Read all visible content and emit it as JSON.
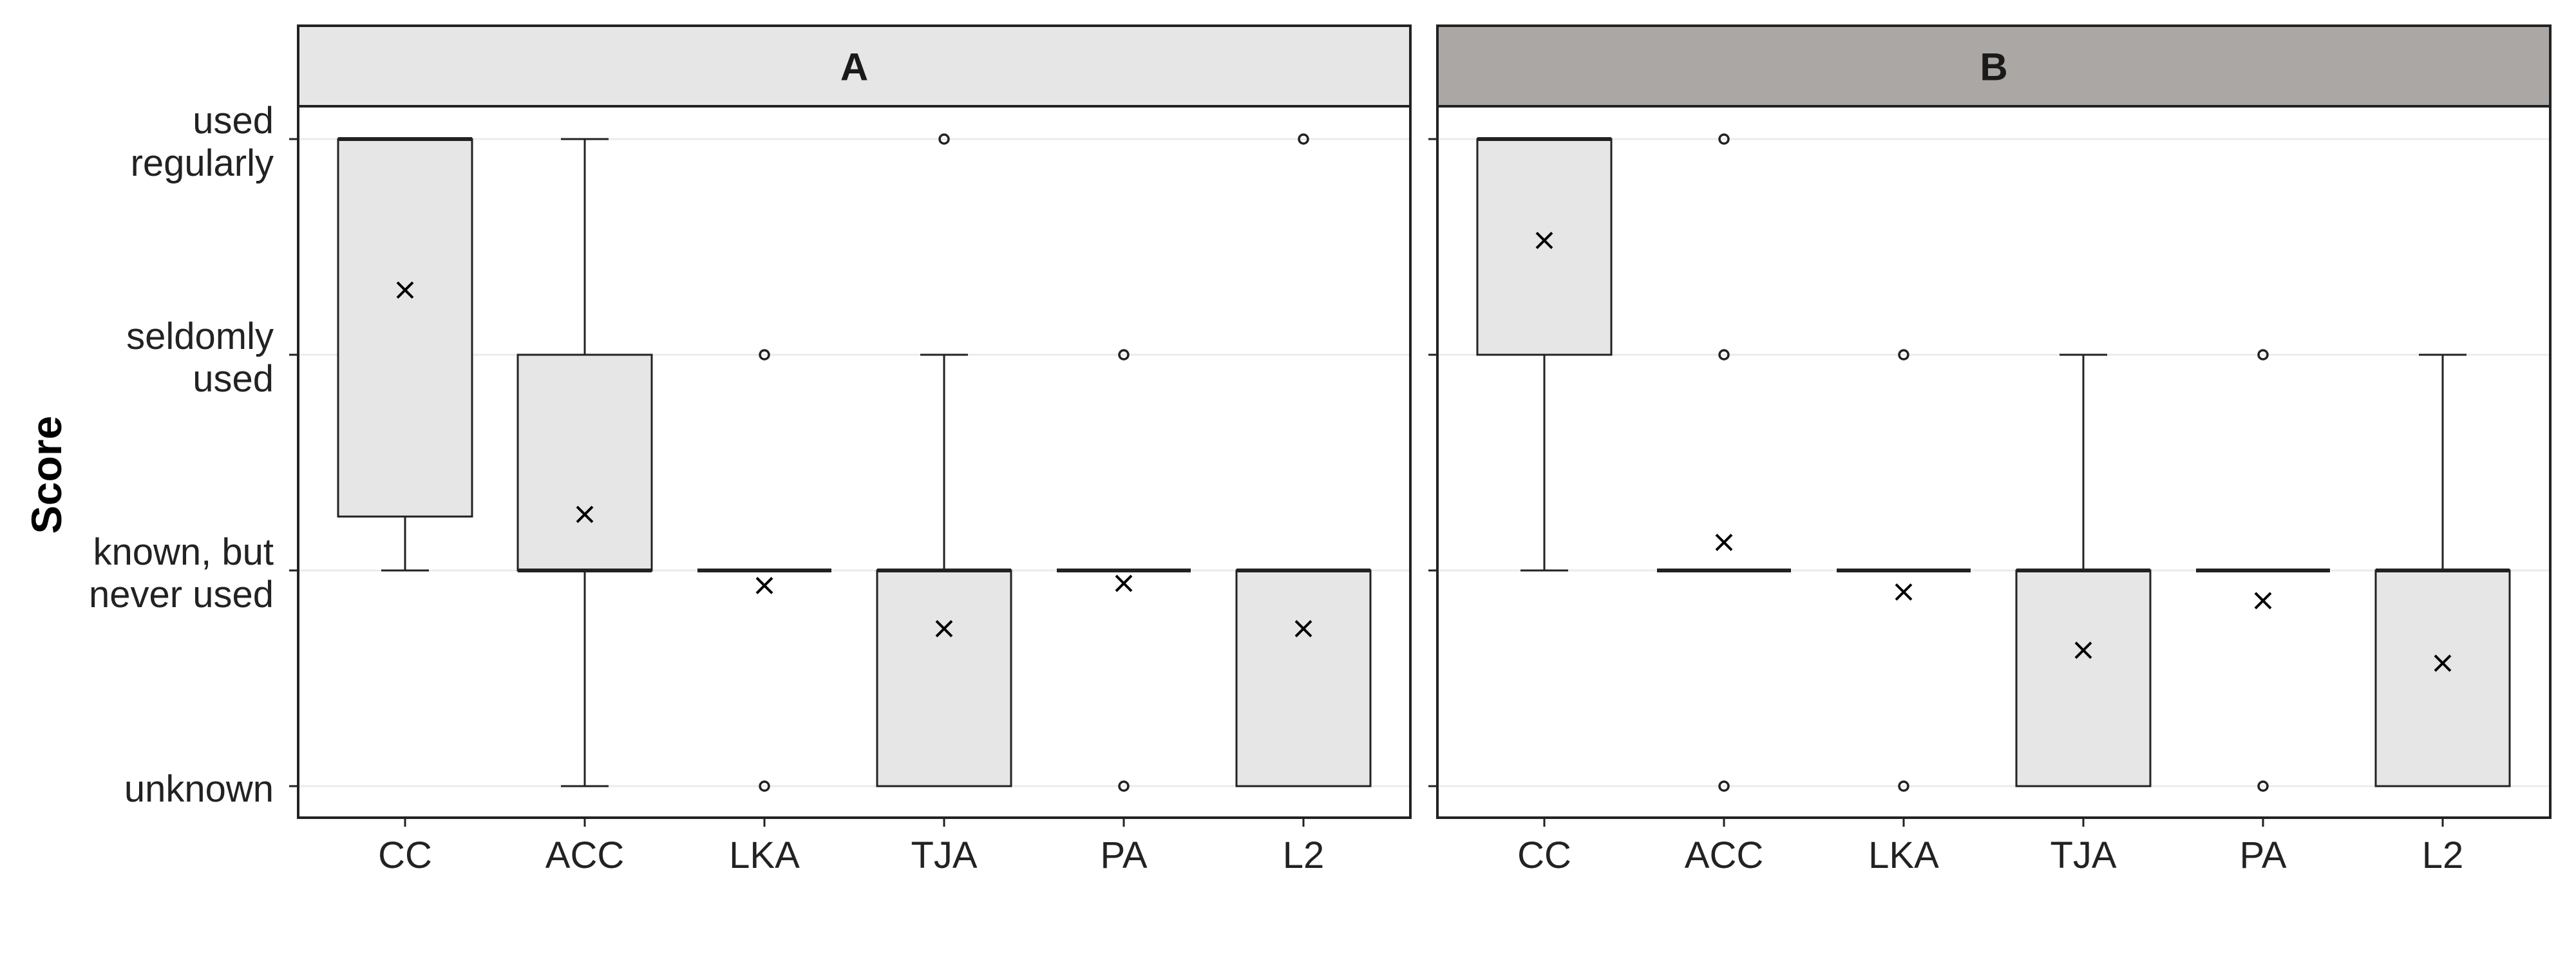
{
  "chart_data": {
    "type": "boxplot",
    "ylabel": "Score",
    "y_scale": "ordinal",
    "ylim": [
      1,
      4
    ],
    "y_ticks": [
      {
        "value": 4,
        "lines": [
          "used",
          "regularly"
        ]
      },
      {
        "value": 3,
        "lines": [
          "seldomly",
          "used"
        ]
      },
      {
        "value": 2,
        "lines": [
          "known, but",
          "never used"
        ]
      },
      {
        "value": 1,
        "lines": [
          "unknown"
        ]
      }
    ],
    "categories": [
      "CC",
      "ACC",
      "LKA",
      "TJA",
      "PA",
      "L2"
    ],
    "grid": true,
    "mean_marker": "×",
    "colors": {
      "box_fill": "#e6e6e6",
      "strip_A": "#e6e6e6",
      "strip_B": "#aba7a4",
      "line": "#222222",
      "grid": "#ebebeb"
    },
    "panels": [
      {
        "title": "A",
        "boxes": [
          {
            "category": "CC",
            "q1": 2.25,
            "median": 4,
            "q3": 4,
            "whisker_low": 2,
            "whisker_high": 4,
            "mean": 3.3,
            "outliers": []
          },
          {
            "category": "ACC",
            "q1": 2,
            "median": 2,
            "q3": 3,
            "whisker_low": 1,
            "whisker_high": 4,
            "mean": 2.26,
            "outliers": []
          },
          {
            "category": "LKA",
            "q1": 2,
            "median": 2,
            "q3": 2,
            "whisker_low": 2,
            "whisker_high": 2,
            "mean": 1.93,
            "outliers": [
              3,
              1
            ]
          },
          {
            "category": "TJA",
            "q1": 1,
            "median": 2,
            "q3": 2,
            "whisker_low": 1,
            "whisker_high": 3,
            "mean": 1.73,
            "outliers": [
              4
            ]
          },
          {
            "category": "PA",
            "q1": 2,
            "median": 2,
            "q3": 2,
            "whisker_low": 2,
            "whisker_high": 2,
            "mean": 1.94,
            "outliers": [
              3,
              1
            ]
          },
          {
            "category": "L2",
            "q1": 1,
            "median": 2,
            "q3": 2,
            "whisker_low": 1,
            "whisker_high": 2,
            "mean": 1.73,
            "outliers": [
              4
            ]
          }
        ]
      },
      {
        "title": "B",
        "boxes": [
          {
            "category": "CC",
            "q1": 3,
            "median": 4,
            "q3": 4,
            "whisker_low": 2,
            "whisker_high": 4,
            "mean": 3.53,
            "outliers": []
          },
          {
            "category": "ACC",
            "q1": 2,
            "median": 2,
            "q3": 2,
            "whisker_low": 2,
            "whisker_high": 2,
            "mean": 2.13,
            "outliers": [
              4,
              3,
              1
            ]
          },
          {
            "category": "LKA",
            "q1": 2,
            "median": 2,
            "q3": 2,
            "whisker_low": 2,
            "whisker_high": 2,
            "mean": 1.9,
            "outliers": [
              3,
              1
            ]
          },
          {
            "category": "TJA",
            "q1": 1,
            "median": 2,
            "q3": 2,
            "whisker_low": 1,
            "whisker_high": 3,
            "mean": 1.63,
            "outliers": []
          },
          {
            "category": "PA",
            "q1": 2,
            "median": 2,
            "q3": 2,
            "whisker_low": 2,
            "whisker_high": 2,
            "mean": 1.86,
            "outliers": [
              3,
              1
            ]
          },
          {
            "category": "L2",
            "q1": 1,
            "median": 2,
            "q3": 2,
            "whisker_low": 1,
            "whisker_high": 3,
            "mean": 1.57,
            "outliers": []
          }
        ]
      }
    ]
  }
}
